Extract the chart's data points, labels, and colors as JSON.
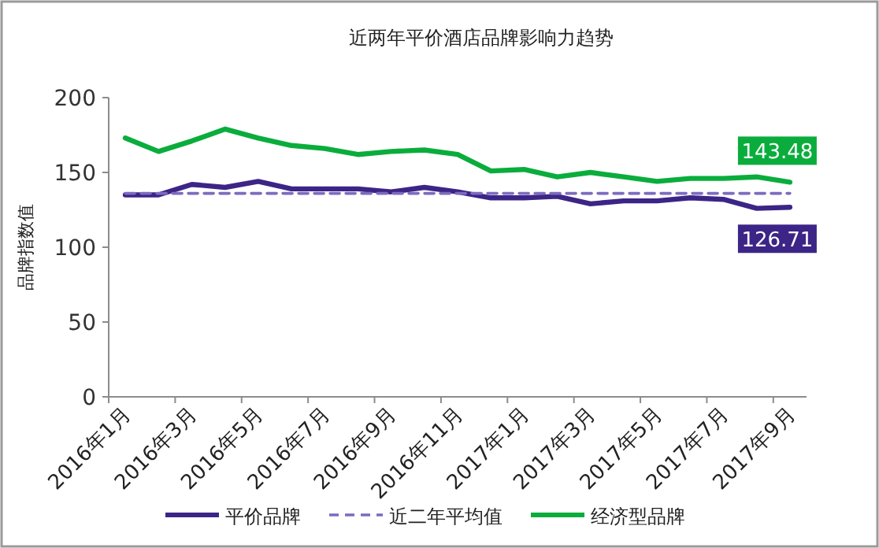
{
  "chart_data": {
    "type": "line",
    "title": "近两年平价酒店品牌影响力趋势",
    "ylabel": "品牌指数值",
    "categories": [
      "2016年1月",
      null,
      "2016年3月",
      null,
      "2016年5月",
      null,
      "2016年7月",
      null,
      "2016年9月",
      null,
      "2016年11月",
      null,
      "2017年1月",
      null,
      "2017年3月",
      null,
      "2017年5月",
      null,
      "2017年7月",
      null,
      "2017年9月"
    ],
    "series": [
      {
        "name": "平价品牌",
        "color": "#3c2586",
        "values": [
          135,
          135,
          142,
          140,
          144,
          139,
          139,
          139,
          137,
          140,
          137,
          133,
          133,
          134,
          129,
          131,
          131,
          133,
          132,
          126,
          126.71
        ],
        "value_labels": [
          null,
          null,
          null,
          null,
          null,
          null,
          null,
          null,
          null,
          null,
          null,
          null,
          null,
          null,
          null,
          null,
          null,
          null,
          null,
          null,
          "126.71"
        ]
      },
      {
        "name": "近二年平均值",
        "color": "#7d6bbf",
        "line_style": "dashed",
        "values": [
          136,
          136,
          136,
          136,
          136,
          136,
          136,
          136,
          136,
          136,
          136,
          136,
          136,
          136,
          136,
          136,
          136,
          136,
          136,
          136,
          136
        ]
      },
      {
        "name": "经济型品牌",
        "color": "#0aad3c",
        "values": [
          173,
          164,
          171,
          179,
          173,
          168,
          166,
          162,
          164,
          165,
          162,
          151,
          152,
          147,
          150,
          147,
          144,
          146,
          146,
          147,
          143.48
        ],
        "value_labels": [
          null,
          null,
          null,
          null,
          null,
          null,
          null,
          null,
          null,
          null,
          null,
          null,
          null,
          null,
          null,
          null,
          null,
          null,
          null,
          null,
          "143.48"
        ]
      }
    ],
    "ylim": [
      0,
      200
    ],
    "yticks": [
      0,
      50,
      100,
      150,
      200
    ],
    "grid": false,
    "legend": "bottom",
    "line_style": "solid",
    "marker": "none"
  }
}
